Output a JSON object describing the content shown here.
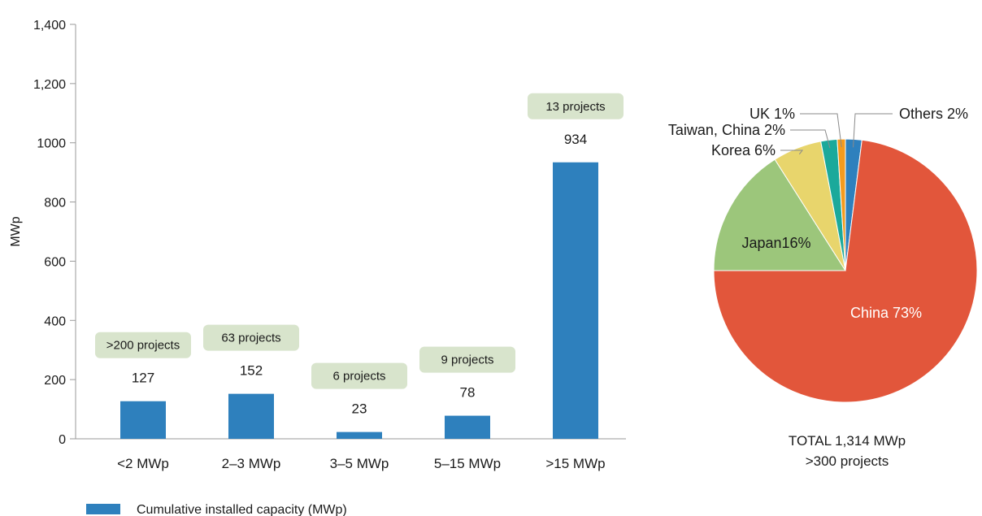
{
  "chart_data": [
    {
      "type": "bar",
      "categories": [
        "<2 MWp",
        "2–3 MWp",
        "3–5 MWp",
        "5–15 MWp",
        ">15 MWp"
      ],
      "series": [
        {
          "name": "Cumulative installed capacity (MWp)",
          "values": [
            127,
            152,
            23,
            78,
            934
          ],
          "color": "#2e80bd"
        }
      ],
      "data_labels": [
        "127",
        "152",
        "23",
        "78",
        "934"
      ],
      "project_badges": [
        ">200 projects",
        "63 projects",
        "6 projects",
        "9 projects",
        "13 projects"
      ],
      "badge_color": "#d8e4cc",
      "ylabel": "MWp",
      "ylim": [
        0,
        1400
      ],
      "yticks": [
        0,
        200,
        400,
        600,
        800,
        1000,
        1200,
        1400
      ],
      "ytick_labels": [
        "0",
        "200",
        "400",
        "600",
        "800",
        "1000",
        "1,200",
        "1,400"
      ],
      "grid": false,
      "legend_position": "bottom-left"
    },
    {
      "type": "pie",
      "slices": [
        {
          "label": "Others 2%",
          "value": 2,
          "color": "#2e80bd"
        },
        {
          "label": "China 73%",
          "value": 73,
          "color": "#e2563b"
        },
        {
          "label": "Japan16%",
          "value": 16,
          "color": "#9cc67b"
        },
        {
          "label": "Korea 6%",
          "value": 6,
          "color": "#e8d56c"
        },
        {
          "label": "Taiwan, China 2%",
          "value": 2,
          "color": "#1ba99b"
        },
        {
          "label": "UK 1%",
          "value": 1,
          "color": "#f49b1e"
        }
      ],
      "total_label": "TOTAL 1,314 MWp",
      "projects_label": ">300 projects"
    }
  ]
}
